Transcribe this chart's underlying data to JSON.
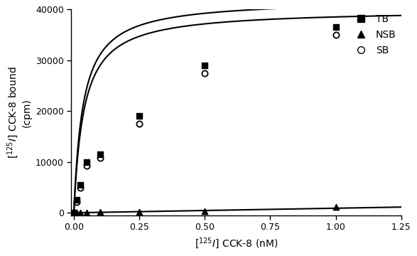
{
  "TB_x": [
    0.0,
    0.01,
    0.025,
    0.05,
    0.1,
    0.25,
    0.5,
    1.0
  ],
  "TB_y": [
    0,
    2500,
    5500,
    10000,
    11500,
    19000,
    29000,
    36500
  ],
  "NSB_x": [
    0.0,
    0.01,
    0.025,
    0.05,
    0.1,
    0.25,
    0.5,
    1.0
  ],
  "NSB_y": [
    0,
    30,
    50,
    80,
    150,
    200,
    300,
    1200
  ],
  "SB_x": [
    0.0,
    0.01,
    0.025,
    0.05,
    0.1,
    0.25,
    0.5,
    1.0
  ],
  "SB_y": [
    0,
    2200,
    5000,
    9200,
    10800,
    17500,
    27500,
    35000
  ],
  "TB_Bmax": 42000,
  "TB_Kd": 0.035,
  "NSB_slope": 900,
  "SB_Bmax": 40000,
  "SB_Kd": 0.038,
  "xlabel": "[125I] CCK-8 (nM)",
  "ylabel": "[125I] CCK-8 bound\n(cpm)",
  "xlim": [
    -0.01,
    1.25
  ],
  "ylim": [
    -500,
    40000
  ],
  "xticks": [
    0.0,
    0.25,
    0.5,
    0.75,
    1.0,
    1.25
  ],
  "yticks": [
    0,
    10000,
    20000,
    30000,
    40000
  ],
  "color": "#000000",
  "figsize": [
    5.87,
    3.6
  ],
  "dpi": 100
}
